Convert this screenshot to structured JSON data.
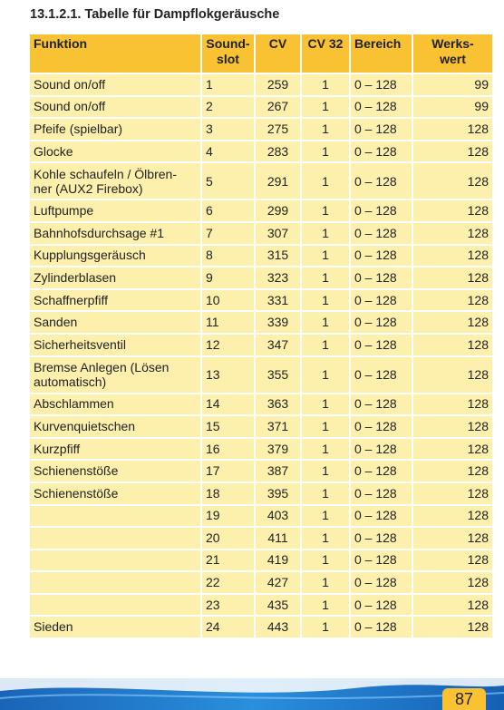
{
  "header": {
    "title": "13.1.2.1. Tabelle für Dampflokgeräusche"
  },
  "table": {
    "columns": [
      [
        "Funktion"
      ],
      [
        "Sound-",
        "slot"
      ],
      [
        "CV"
      ],
      [
        "CV 32"
      ],
      [
        "Bereich"
      ],
      [
        "Werks-",
        "wert"
      ]
    ],
    "rows": [
      [
        [
          "Sound on/off"
        ],
        1,
        259,
        1,
        "0 – 128",
        99
      ],
      [
        [
          "Sound on/off"
        ],
        2,
        267,
        1,
        "0 – 128",
        99
      ],
      [
        [
          "Pfeife (spielbar)"
        ],
        3,
        275,
        1,
        "0 – 128",
        128
      ],
      [
        [
          "Glocke"
        ],
        4,
        283,
        1,
        "0 – 128",
        128
      ],
      [
        [
          "Kohle schaufeln / Ölbren-",
          "ner (AUX2 Firebox)"
        ],
        5,
        291,
        1,
        "0 – 128",
        128
      ],
      [
        [
          "Luftpumpe"
        ],
        6,
        299,
        1,
        "0 – 128",
        128
      ],
      [
        [
          "Bahnhofsdurchsage #1"
        ],
        7,
        307,
        1,
        "0 – 128",
        128
      ],
      [
        [
          "Kupplungsgeräusch"
        ],
        8,
        315,
        1,
        "0 – 128",
        128
      ],
      [
        [
          "Zylinderblasen"
        ],
        9,
        323,
        1,
        "0 – 128",
        128
      ],
      [
        [
          "Schaffnerpfiff"
        ],
        10,
        331,
        1,
        "0 – 128",
        128
      ],
      [
        [
          "Sanden"
        ],
        11,
        339,
        1,
        "0 – 128",
        128
      ],
      [
        [
          "Sicherheitsventil"
        ],
        12,
        347,
        1,
        "0 – 128",
        128
      ],
      [
        [
          "Bremse Anlegen (Lösen",
          "automatisch)"
        ],
        13,
        355,
        1,
        "0 – 128",
        128
      ],
      [
        [
          "Abschlammen"
        ],
        14,
        363,
        1,
        "0 – 128",
        128
      ],
      [
        [
          "Kurvenquietschen"
        ],
        15,
        371,
        1,
        "0 – 128",
        128
      ],
      [
        [
          "Kurzpfiff"
        ],
        16,
        379,
        1,
        "0 – 128",
        128
      ],
      [
        [
          "Schienenstöße"
        ],
        17,
        387,
        1,
        "0 – 128",
        128
      ],
      [
        [
          "Schienenstöße"
        ],
        18,
        395,
        1,
        "0 – 128",
        128
      ],
      [
        null,
        19,
        403,
        1,
        "0 – 128",
        128
      ],
      [
        null,
        20,
        411,
        1,
        "0 – 128",
        128
      ],
      [
        null,
        21,
        419,
        1,
        "0 – 128",
        128
      ],
      [
        null,
        22,
        427,
        1,
        "0 – 128",
        128
      ],
      [
        null,
        23,
        435,
        1,
        "0 – 128",
        128
      ],
      [
        [
          "Sieden"
        ],
        24,
        443,
        1,
        "0 – 128",
        128
      ]
    ]
  },
  "footer": {
    "page_number": "87"
  }
}
